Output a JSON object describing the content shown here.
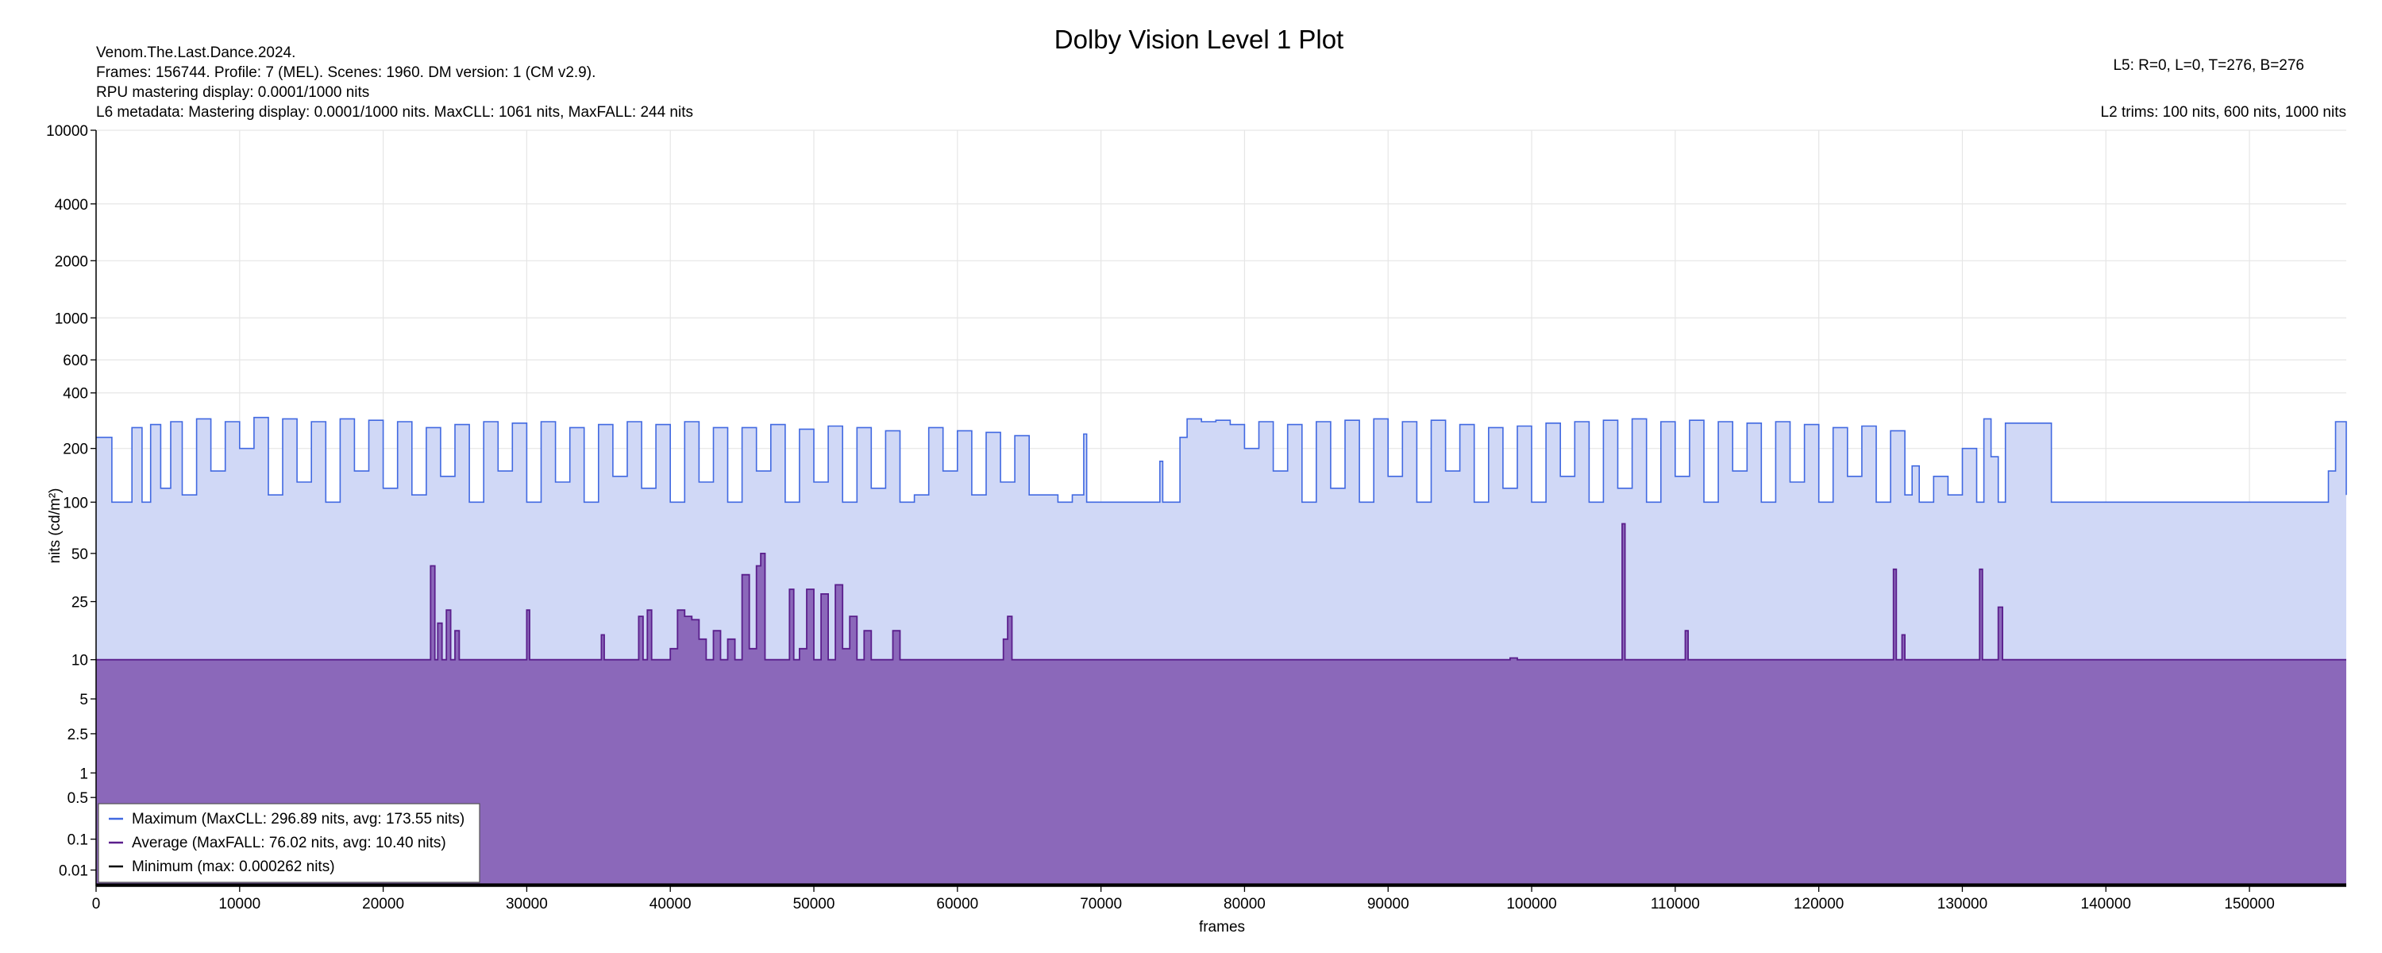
{
  "chart_data": {
    "type": "area",
    "title": "Dolby Vision Level 1 Plot",
    "info_left": [
      "Venom.The.Last.Dance.2024.",
      "Frames: 156744. Profile: 7 (MEL). Scenes: 1960. DM version: 1 (CM v2.9).",
      "RPU mastering display: 0.0001/1000 nits",
      "L6 metadata: Mastering display: 0.0001/1000 nits. MaxCLL: 1061 nits, MaxFALL: 244 nits"
    ],
    "info_right": [
      "L5: R=0, L=0, T=276, B=276",
      "L2 trims: 100 nits, 600 nits, 1000 nits"
    ],
    "xlabel": "frames",
    "ylabel": "nits (cd/m²)",
    "xlim": [
      0,
      156744
    ],
    "x_ticks": [
      0,
      10000,
      20000,
      30000,
      40000,
      50000,
      60000,
      70000,
      80000,
      90000,
      100000,
      110000,
      120000,
      130000,
      140000,
      150000
    ],
    "y_ticks": [
      {
        "value": 0.01,
        "label": "0.01"
      },
      {
        "value": 0.1,
        "label": "0.1"
      },
      {
        "value": 0.5,
        "label": "0.5"
      },
      {
        "value": 1,
        "label": "1"
      },
      {
        "value": 2.5,
        "label": "2.5"
      },
      {
        "value": 5,
        "label": "5"
      },
      {
        "value": 10,
        "label": "10"
      },
      {
        "value": 25,
        "label": "25"
      },
      {
        "value": 50,
        "label": "50"
      },
      {
        "value": 100,
        "label": "100"
      },
      {
        "value": 200,
        "label": "200"
      },
      {
        "value": 400,
        "label": "400"
      },
      {
        "value": 600,
        "label": "600"
      },
      {
        "value": 1000,
        "label": "1000"
      },
      {
        "value": 2000,
        "label": "2000"
      },
      {
        "value": 4000,
        "label": "4000"
      },
      {
        "value": 10000,
        "label": "10000"
      }
    ],
    "y_scale": "PQ (perceptual quantizer)",
    "ylim": [
      0,
      10000
    ],
    "grid": true,
    "legend_position": "bottom-left",
    "legend": [
      "Maximum (MaxCLL: 296.89 nits, avg: 173.55 nits)",
      "Average (MaxFALL: 76.02 nits, avg: 10.40 nits)",
      "Minimum (max: 0.000262 nits)"
    ],
    "colors": {
      "maximum_line": "#4169e1",
      "maximum_fill": "#d0d8f6",
      "average_line": "#5a1e8c",
      "average_fill": "#8b68ba",
      "minimum_line": "#000000"
    },
    "series": [
      {
        "name": "Maximum",
        "points": [
          [
            0,
            230
          ],
          [
            1000,
            230
          ],
          [
            1100,
            100
          ],
          [
            2000,
            100
          ],
          [
            2500,
            260
          ],
          [
            3200,
            100
          ],
          [
            3800,
            270
          ],
          [
            4500,
            120
          ],
          [
            5200,
            280
          ],
          [
            6000,
            110
          ],
          [
            7000,
            290
          ],
          [
            8000,
            150
          ],
          [
            9000,
            280
          ],
          [
            10000,
            200
          ],
          [
            11000,
            295
          ],
          [
            12000,
            110
          ],
          [
            13000,
            290
          ],
          [
            14000,
            130
          ],
          [
            15000,
            280
          ],
          [
            16000,
            100
          ],
          [
            17000,
            290
          ],
          [
            18000,
            150
          ],
          [
            19000,
            285
          ],
          [
            20000,
            120
          ],
          [
            21000,
            280
          ],
          [
            22000,
            110
          ],
          [
            23000,
            260
          ],
          [
            24000,
            140
          ],
          [
            25000,
            270
          ],
          [
            26000,
            100
          ],
          [
            27000,
            280
          ],
          [
            28000,
            150
          ],
          [
            29000,
            275
          ],
          [
            30000,
            100
          ],
          [
            31000,
            280
          ],
          [
            32000,
            130
          ],
          [
            33000,
            260
          ],
          [
            34000,
            100
          ],
          [
            35000,
            270
          ],
          [
            36000,
            140
          ],
          [
            37000,
            280
          ],
          [
            38000,
            120
          ],
          [
            39000,
            270
          ],
          [
            40000,
            100
          ],
          [
            41000,
            280
          ],
          [
            42000,
            130
          ],
          [
            43000,
            260
          ],
          [
            44000,
            100
          ],
          [
            45000,
            260
          ],
          [
            46000,
            150
          ],
          [
            47000,
            270
          ],
          [
            48000,
            100
          ],
          [
            49000,
            255
          ],
          [
            50000,
            130
          ],
          [
            51000,
            265
          ],
          [
            52000,
            100
          ],
          [
            53000,
            260
          ],
          [
            54000,
            120
          ],
          [
            55000,
            250
          ],
          [
            56000,
            100
          ],
          [
            57000,
            110
          ],
          [
            58000,
            260
          ],
          [
            59000,
            150
          ],
          [
            60000,
            250
          ],
          [
            61000,
            110
          ],
          [
            62000,
            245
          ],
          [
            63000,
            130
          ],
          [
            64000,
            235
          ],
          [
            65000,
            110
          ],
          [
            66000,
            110
          ],
          [
            67000,
            100
          ],
          [
            68000,
            110
          ],
          [
            68800,
            240
          ],
          [
            69000,
            100
          ],
          [
            70000,
            100
          ],
          [
            71000,
            100
          ],
          [
            71500,
            100
          ],
          [
            72000,
            100
          ],
          [
            74000,
            100
          ],
          [
            74100,
            170
          ],
          [
            74300,
            100
          ],
          [
            75000,
            100
          ],
          [
            75500,
            230
          ],
          [
            76000,
            290
          ],
          [
            77000,
            280
          ],
          [
            78000,
            285
          ],
          [
            79000,
            270
          ],
          [
            80000,
            200
          ],
          [
            81000,
            280
          ],
          [
            82000,
            150
          ],
          [
            83000,
            270
          ],
          [
            84000,
            100
          ],
          [
            85000,
            280
          ],
          [
            86000,
            120
          ],
          [
            87000,
            285
          ],
          [
            88000,
            100
          ],
          [
            89000,
            290
          ],
          [
            90000,
            140
          ],
          [
            91000,
            280
          ],
          [
            92000,
            100
          ],
          [
            93000,
            285
          ],
          [
            94000,
            150
          ],
          [
            95000,
            270
          ],
          [
            96000,
            100
          ],
          [
            97000,
            260
          ],
          [
            98000,
            120
          ],
          [
            99000,
            265
          ],
          [
            100000,
            100
          ],
          [
            101000,
            275
          ],
          [
            102000,
            140
          ],
          [
            103000,
            280
          ],
          [
            104000,
            100
          ],
          [
            105000,
            285
          ],
          [
            106000,
            120
          ],
          [
            107000,
            290
          ],
          [
            108000,
            100
          ],
          [
            109000,
            280
          ],
          [
            110000,
            140
          ],
          [
            111000,
            285
          ],
          [
            112000,
            100
          ],
          [
            113000,
            280
          ],
          [
            114000,
            150
          ],
          [
            115000,
            275
          ],
          [
            116000,
            100
          ],
          [
            117000,
            280
          ],
          [
            118000,
            130
          ],
          [
            119000,
            270
          ],
          [
            120000,
            100
          ],
          [
            121000,
            260
          ],
          [
            122000,
            140
          ],
          [
            123000,
            265
          ],
          [
            124000,
            100
          ],
          [
            125000,
            250
          ],
          [
            126000,
            110
          ],
          [
            126500,
            160
          ],
          [
            127000,
            100
          ],
          [
            128000,
            140
          ],
          [
            129000,
            110
          ],
          [
            130000,
            200
          ],
          [
            131000,
            100
          ],
          [
            131500,
            290
          ],
          [
            132000,
            180
          ],
          [
            132500,
            100
          ],
          [
            133000,
            275
          ],
          [
            136000,
            275
          ],
          [
            136200,
            100
          ],
          [
            145000,
            100
          ],
          [
            155000,
            100
          ],
          [
            155500,
            150
          ],
          [
            156000,
            280
          ],
          [
            156400,
            280
          ],
          [
            156744,
            110
          ]
        ]
      },
      {
        "name": "Average",
        "points": [
          [
            0,
            10
          ],
          [
            23000,
            10
          ],
          [
            23300,
            42
          ],
          [
            23600,
            10
          ],
          [
            23800,
            18
          ],
          [
            24100,
            10
          ],
          [
            24400,
            22
          ],
          [
            24700,
            10
          ],
          [
            25000,
            16
          ],
          [
            25300,
            10
          ],
          [
            29800,
            10
          ],
          [
            30000,
            22
          ],
          [
            30200,
            10
          ],
          [
            35000,
            10
          ],
          [
            35200,
            15
          ],
          [
            35400,
            10
          ],
          [
            37500,
            10
          ],
          [
            37800,
            20
          ],
          [
            38100,
            10
          ],
          [
            38400,
            22
          ],
          [
            38700,
            10
          ],
          [
            40000,
            12
          ],
          [
            40500,
            22
          ],
          [
            41000,
            20
          ],
          [
            41500,
            19
          ],
          [
            42000,
            14
          ],
          [
            42500,
            10
          ],
          [
            43000,
            16
          ],
          [
            43500,
            10
          ],
          [
            44000,
            14
          ],
          [
            44500,
            10
          ],
          [
            45000,
            37
          ],
          [
            45500,
            12
          ],
          [
            46000,
            42
          ],
          [
            46300,
            50
          ],
          [
            46600,
            10
          ],
          [
            48000,
            10
          ],
          [
            48300,
            30
          ],
          [
            48600,
            10
          ],
          [
            49000,
            12
          ],
          [
            49500,
            30
          ],
          [
            50000,
            10
          ],
          [
            50500,
            28
          ],
          [
            51000,
            10
          ],
          [
            51500,
            32
          ],
          [
            52000,
            12
          ],
          [
            52500,
            20
          ],
          [
            53000,
            10
          ],
          [
            53500,
            16
          ],
          [
            54000,
            10
          ],
          [
            55000,
            10
          ],
          [
            55500,
            16
          ],
          [
            56000,
            10
          ],
          [
            63000,
            10
          ],
          [
            63200,
            14
          ],
          [
            63500,
            20
          ],
          [
            63800,
            10
          ],
          [
            98000,
            10
          ],
          [
            98500,
            10.3
          ],
          [
            99000,
            10
          ],
          [
            106000,
            10
          ],
          [
            106300,
            75
          ],
          [
            106500,
            10
          ],
          [
            110500,
            10
          ],
          [
            110700,
            16
          ],
          [
            110900,
            10
          ],
          [
            125000,
            10
          ],
          [
            125200,
            40
          ],
          [
            125400,
            10
          ],
          [
            125800,
            15
          ],
          [
            126000,
            10
          ],
          [
            131000,
            10
          ],
          [
            131200,
            40
          ],
          [
            131400,
            10
          ],
          [
            132300,
            10
          ],
          [
            132500,
            23
          ],
          [
            132800,
            10
          ],
          [
            156744,
            10
          ]
        ]
      },
      {
        "name": "Minimum",
        "points": [
          [
            0,
            0.0001
          ],
          [
            156744,
            0.0001
          ]
        ]
      }
    ]
  }
}
